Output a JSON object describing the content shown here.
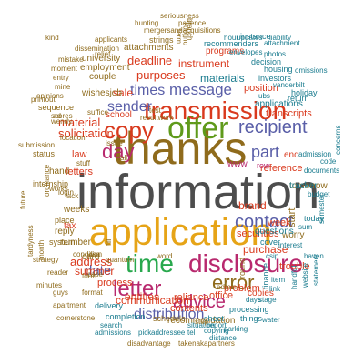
{
  "cloud": {
    "words": [
      {
        "text": "information",
        "color": "#4d4d4d",
        "tier": "largest"
      },
      {
        "text": "thanks",
        "color": "#8f6b1c",
        "tier": "largest"
      },
      {
        "text": "application",
        "color": "#e6a417",
        "tier": "largest"
      },
      {
        "text": "offer",
        "color": "#5f9a1b",
        "tier": "huge"
      },
      {
        "text": "transmission",
        "color": "#d93a1e",
        "tier": "huge"
      },
      {
        "text": "time",
        "color": "#28a84d",
        "tier": "huge"
      },
      {
        "text": "disclosure",
        "color": "#b8296e",
        "tier": "huge"
      },
      {
        "text": "copy",
        "color": "#d93a1e",
        "tier": "huge"
      },
      {
        "text": "letter",
        "color": "#b8296e",
        "tier": "huge"
      },
      {
        "text": "error",
        "color": "#8f6b1c",
        "tier": "huge"
      },
      {
        "text": "advice",
        "color": "#b8296e",
        "tier": "huge"
      },
      {
        "text": "day",
        "color": "#b8296e",
        "tier": "huge"
      },
      {
        "text": "message",
        "color": "#5a5fa8",
        "tier": "large"
      },
      {
        "text": "times",
        "color": "#5a5fa8",
        "tier": "large"
      },
      {
        "text": "recipient",
        "color": "#5a5fa8",
        "tier": "large"
      },
      {
        "text": "contact",
        "color": "#5a5fa8",
        "tier": "large"
      },
      {
        "text": "sender",
        "color": "#5a5fa8",
        "tier": "large"
      },
      {
        "text": "part",
        "color": "#5a5fa8",
        "tier": "large"
      },
      {
        "text": "distribution",
        "color": "#5a5fa8",
        "tier": "large"
      },
      {
        "text": "date",
        "color": "#5a5fa8",
        "tier": "large"
      },
      {
        "text": "materials",
        "color": "#1b7c8f",
        "tier": "medium"
      },
      {
        "text": "sale",
        "color": "#d93a1e",
        "tier": "medium"
      },
      {
        "text": "purposes",
        "color": "#d93a1e",
        "tier": "medium"
      },
      {
        "text": "deadline",
        "color": "#d93a1e",
        "tier": "medium"
      },
      {
        "text": "instrument",
        "color": "#d93a1e",
        "tier": "medium"
      },
      {
        "text": "material",
        "color": "#d93a1e",
        "tier": "medium"
      },
      {
        "text": "solicitation",
        "color": "#d93a1e",
        "tier": "medium"
      },
      {
        "text": "address",
        "color": "#d93a1e",
        "tier": "medium"
      },
      {
        "text": "summer",
        "color": "#d93a1e",
        "tier": "medium"
      },
      {
        "text": "entities",
        "color": "#d93a1e",
        "tier": "medium"
      },
      {
        "text": "communication",
        "color": "#d93a1e",
        "tier": "medium"
      },
      {
        "text": "reliance",
        "color": "#d93a1e",
        "tier": "medium"
      },
      {
        "text": "brand",
        "color": "#d93a1e",
        "tier": "medium"
      },
      {
        "text": "purchase",
        "color": "#d93a1e",
        "tier": "medium"
      },
      {
        "text": "trouble",
        "color": "#d93a1e",
        "tier": "medium"
      },
      {
        "text": "securities",
        "color": "#d93a1e",
        "tier": "medium"
      },
      {
        "text": "problem",
        "color": "#d93a1e",
        "tier": "medium"
      },
      {
        "text": "week",
        "color": "#d93a1e",
        "tier": "medium"
      },
      {
        "text": "reference",
        "color": "#d93a1e",
        "tier": "medium"
      },
      {
        "text": "transcripts",
        "color": "#d93a1e",
        "tier": "medium"
      },
      {
        "text": "position",
        "color": "#d93a1e",
        "tier": "medium"
      },
      {
        "text": "letters",
        "color": "#d93a1e",
        "tier": "medium"
      },
      {
        "text": "contents",
        "color": "#d93a1e",
        "tier": "medium"
      },
      {
        "text": "process",
        "color": "#d93a1e",
        "tier": "medium"
      },
      {
        "text": "office",
        "color": "#d93a1e",
        "tier": "medium"
      },
      {
        "text": "law",
        "color": "#d93a1e",
        "tier": "medium"
      },
      {
        "text": "tax",
        "color": "#d93a1e",
        "tier": "small"
      },
      {
        "text": "end",
        "color": "#d93a1e",
        "tier": "small"
      },
      {
        "text": "copies",
        "color": "#d93a1e",
        "tier": "small"
      },
      {
        "text": "school",
        "color": "#d93a1e",
        "tier": "small"
      },
      {
        "text": "programs",
        "color": "#d93a1e",
        "tier": "small"
      },
      {
        "text": "university",
        "color": "#8f6b1c",
        "tier": "small"
      },
      {
        "text": "employment",
        "color": "#8f6b1c",
        "tier": "small"
      },
      {
        "text": "attachments",
        "color": "#8f6b1c",
        "tier": "small"
      },
      {
        "text": "strings",
        "color": "#8f6b1c",
        "tier": "small"
      },
      {
        "text": "couple",
        "color": "#8f6b1c",
        "tier": "small"
      },
      {
        "text": "wishesjob",
        "color": "#8f6b1c",
        "tier": "small"
      },
      {
        "text": "recommendation",
        "color": "#8f6b1c",
        "tier": "small"
      },
      {
        "text": "schedule",
        "color": "#8f6b1c",
        "tier": "small"
      },
      {
        "text": "worry",
        "color": "#8f6b1c",
        "tier": "small"
      },
      {
        "text": "tomorrow",
        "color": "#8f6b1c",
        "tier": "small"
      },
      {
        "text": "start",
        "color": "#8f6b1c",
        "tier": "small"
      },
      {
        "text": "card",
        "color": "#8f6b1c",
        "tier": "small"
      },
      {
        "text": "number",
        "color": "#8f6b1c",
        "tier": "small"
      },
      {
        "text": "weeks",
        "color": "#8f6b1c",
        "tier": "small"
      },
      {
        "text": "hand",
        "color": "#8f6b1c",
        "tier": "small"
      },
      {
        "text": "www",
        "color": "#b8296e",
        "tier": "small"
      },
      {
        "text": "row",
        "color": "#b8296e",
        "tier": "small"
      },
      {
        "text": "housing",
        "color": "#1b7c8f",
        "tier": "small"
      },
      {
        "text": "recommenders",
        "color": "#1b7c8f",
        "tier": "small"
      },
      {
        "text": "instance",
        "color": "#1b7c8f",
        "tier": "small"
      },
      {
        "text": "decision",
        "color": "#1b7c8f",
        "tier": "small"
      },
      {
        "text": "investors",
        "color": "#1b7c8f",
        "tier": "small"
      },
      {
        "text": "applications",
        "color": "#1b7c8f",
        "tier": "small"
      },
      {
        "text": "holiday",
        "color": "#1b7c8f",
        "tier": "small"
      },
      {
        "text": "return",
        "color": "#1b7c8f",
        "tier": "small"
      },
      {
        "text": "tracker",
        "color": "#1b7c8f",
        "tier": "small"
      },
      {
        "text": "cover",
        "color": "#1b7c8f",
        "tier": "small"
      },
      {
        "text": "questions",
        "color": "#1b7c8f",
        "tier": "small"
      },
      {
        "text": "today",
        "color": "#1b7c8f",
        "tier": "small"
      },
      {
        "text": "finance",
        "color": "#1b7c8f",
        "tier": "small"
      },
      {
        "text": "sheet",
        "color": "#1b7c8f",
        "tier": "small"
      },
      {
        "text": "processing",
        "color": "#1b7c8f",
        "tier": "small"
      },
      {
        "text": "things",
        "color": "#1b7c8f",
        "tier": "small"
      },
      {
        "text": "delivery",
        "color": "#1b7c8f",
        "tier": "small"
      },
      {
        "text": "completion",
        "color": "#1b7c8f",
        "tier": "small"
      },
      {
        "text": "search",
        "color": "#1b7c8f",
        "tier": "tiny"
      },
      {
        "text": "admissions",
        "color": "#1b7c8f",
        "tier": "tiny"
      },
      {
        "text": "pick",
        "color": "#1b7c8f",
        "tier": "tiny"
      },
      {
        "text": "addressee",
        "color": "#1b7c8f",
        "tier": "tiny"
      },
      {
        "text": "tel",
        "color": "#1b7c8f",
        "tier": "tiny"
      },
      {
        "text": "report",
        "color": "#1b7c8f",
        "tier": "tiny"
      },
      {
        "text": "situation",
        "color": "#1b7c8f",
        "tier": "tiny"
      },
      {
        "text": "parking",
        "color": "#1b7c8f",
        "tier": "tiny"
      },
      {
        "text": "copying",
        "color": "#1b7c8f",
        "tier": "tiny"
      },
      {
        "text": "distance",
        "color": "#1b7c8f",
        "tier": "tiny"
      },
      {
        "text": "water",
        "color": "#1b7c8f",
        "tier": "tiny"
      },
      {
        "text": "stage",
        "color": "#1b7c8f",
        "tier": "tiny"
      },
      {
        "text": "days",
        "color": "#1b7c8f",
        "tier": "tiny"
      },
      {
        "text": "link",
        "color": "#1b7c8f",
        "tier": "tiny"
      },
      {
        "text": "item",
        "color": "#1b7c8f",
        "tier": "tiny"
      },
      {
        "text": "handful",
        "color": "#1b7c8f",
        "tier": "tiny"
      },
      {
        "text": "website",
        "color": "#1b7c8f",
        "tier": "tiny"
      },
      {
        "text": "statement",
        "color": "#1b7c8f",
        "tier": "tiny"
      },
      {
        "text": "haven",
        "color": "#1b7c8f",
        "tier": "tiny"
      },
      {
        "text": "budget",
        "color": "#1b7c8f",
        "tier": "tiny"
      },
      {
        "text": "documents",
        "color": "#1b7c8f",
        "tier": "tiny"
      },
      {
        "text": "admission",
        "color": "#1b7c8f",
        "tier": "tiny"
      },
      {
        "text": "code",
        "color": "#1b7c8f",
        "tier": "tiny"
      },
      {
        "text": "vanderbilt",
        "color": "#1b7c8f",
        "tier": "tiny"
      },
      {
        "text": "ubs",
        "color": "#1b7c8f",
        "tier": "tiny"
      },
      {
        "text": "sum",
        "color": "#1b7c8f",
        "tier": "tiny"
      },
      {
        "text": "interest",
        "color": "#1b7c8f",
        "tier": "tiny"
      },
      {
        "text": "csip",
        "color": "#1b7c8f",
        "tier": "tiny"
      },
      {
        "text": "semester",
        "color": "#1b7c8f",
        "tier": "tiny"
      },
      {
        "text": "concerns",
        "color": "#1b7c8f",
        "tier": "tiny"
      },
      {
        "text": "omissions",
        "color": "#1b7c8f",
        "tier": "tiny"
      },
      {
        "text": "attachment",
        "color": "#1b7c8f",
        "tier": "tiny"
      },
      {
        "text": "photos",
        "color": "#1b7c8f",
        "tier": "tiny"
      },
      {
        "text": "envelopes",
        "color": "#1b7c8f",
        "tier": "tiny"
      },
      {
        "text": "updates",
        "color": "#1b7c8f",
        "tier": "tiny"
      },
      {
        "text": "liability",
        "color": "#1b7c8f",
        "tier": "tiny"
      },
      {
        "text": "hour",
        "color": "#1b7c8f",
        "tier": "tiny"
      },
      {
        "text": "seriousness",
        "color": "#8f6b1c",
        "tier": "tiny"
      },
      {
        "text": "hunting",
        "color": "#8f6b1c",
        "tier": "tiny"
      },
      {
        "text": "patience",
        "color": "#8f6b1c",
        "tier": "tiny"
      },
      {
        "text": "mergersandacquisitions",
        "color": "#8f6b1c",
        "tier": "tiny"
      },
      {
        "text": "applicants",
        "color": "#8f6b1c",
        "tier": "tiny"
      },
      {
        "text": "dissemination",
        "color": "#8f6b1c",
        "tier": "tiny"
      },
      {
        "text": "relief",
        "color": "#8f6b1c",
        "tier": "tiny"
      },
      {
        "text": "mistake",
        "color": "#8f6b1c",
        "tier": "tiny"
      },
      {
        "text": "moment",
        "color": "#8f6b1c",
        "tier": "tiny"
      },
      {
        "text": "entry",
        "color": "#8f6b1c",
        "tier": "tiny"
      },
      {
        "text": "opinions",
        "color": "#8f6b1c",
        "tier": "tiny"
      },
      {
        "text": "printout",
        "color": "#8f6b1c",
        "tier": "tiny"
      },
      {
        "text": "sequence",
        "color": "#8f6b1c",
        "tier": "tiny"
      },
      {
        "text": "submission",
        "color": "#8f6b1c",
        "tier": "tiny"
      },
      {
        "text": "status",
        "color": "#8f6b1c",
        "tier": "tiny"
      },
      {
        "text": "internship",
        "color": "#8f6b1c",
        "tier": "tiny"
      },
      {
        "text": "place",
        "color": "#8f6b1c",
        "tier": "tiny"
      },
      {
        "text": "reply",
        "color": "#8f6b1c",
        "tier": "tiny"
      },
      {
        "text": "system",
        "color": "#8f6b1c",
        "tier": "tiny"
      },
      {
        "text": "strategy",
        "color": "#8f6b1c",
        "tier": "tiny"
      },
      {
        "text": "reader",
        "color": "#8f6b1c",
        "tier": "tiny"
      },
      {
        "text": "minutes",
        "color": "#8f6b1c",
        "tier": "tiny"
      },
      {
        "text": "guys",
        "color": "#8f6b1c",
        "tier": "tiny"
      },
      {
        "text": "apartment",
        "color": "#8f6b1c",
        "tier": "tiny"
      },
      {
        "text": "cornerstone",
        "color": "#8f6b1c",
        "tier": "tiny"
      },
      {
        "text": "disadvantage",
        "color": "#8f6b1c",
        "tier": "tiny"
      },
      {
        "text": "takenakapartners",
        "color": "#8f6b1c",
        "tier": "tiny"
      },
      {
        "text": "format",
        "color": "#8f6b1c",
        "tier": "tiny"
      },
      {
        "text": "form",
        "color": "#8f6b1c",
        "tier": "tiny"
      },
      {
        "text": "case",
        "color": "#8f6b1c",
        "tier": "tiny"
      },
      {
        "text": "scores",
        "color": "#8f6b1c",
        "tier": "tiny"
      },
      {
        "text": "wendy",
        "color": "#8f6b1c",
        "tier": "tiny"
      },
      {
        "text": "mine",
        "color": "#8f6b1c",
        "tier": "tiny"
      },
      {
        "text": "location",
        "color": "#8f6b1c",
        "tier": "tiny"
      },
      {
        "text": "suffice",
        "color": "#8f6b1c",
        "tier": "tiny"
      },
      {
        "text": "resultwork",
        "color": "#8f6b1c",
        "tier": "tiny"
      },
      {
        "text": "stuff",
        "color": "#8f6b1c",
        "tier": "tiny"
      },
      {
        "text": "condition",
        "color": "#8f6b1c",
        "tier": "tiny"
      },
      {
        "text": "visa",
        "color": "#8f6b1c",
        "tier": "tiny"
      },
      {
        "text": "fill",
        "color": "#8f6b1c",
        "tier": "tiny"
      },
      {
        "text": "quantum",
        "color": "#8f6b1c",
        "tier": "tiny"
      },
      {
        "text": "admin",
        "color": "#8f6b1c",
        "tier": "tiny"
      },
      {
        "text": "word",
        "color": "#8f6b1c",
        "tier": "tiny"
      },
      {
        "text": "round",
        "color": "#8f6b1c",
        "tier": "tiny"
      },
      {
        "text": "step",
        "color": "#8f6b1c",
        "tier": "tiny"
      },
      {
        "text": "term",
        "color": "#8f6b1c",
        "tier": "tiny"
      },
      {
        "text": "branch",
        "color": "#8f6b1c",
        "tier": "tiny"
      },
      {
        "text": "outlook",
        "color": "#8f6b1c",
        "tier": "tiny"
      },
      {
        "text": "ordinance",
        "color": "#8f6b1c",
        "tier": "tiny"
      },
      {
        "text": "future",
        "color": "#8f6b1c",
        "tier": "tiny"
      },
      {
        "text": "tardyness",
        "color": "#8f6b1c",
        "tier": "tiny"
      },
      {
        "text": "month",
        "color": "#8f6b1c",
        "tier": "tiny"
      },
      {
        "text": "works",
        "color": "#8f6b1c",
        "tier": "tiny"
      },
      {
        "text": "login",
        "color": "#8f6b1c",
        "tier": "tiny"
      },
      {
        "text": "lack",
        "color": "#8f6b1c",
        "tier": "tiny"
      },
      {
        "text": "ad",
        "color": "#8f6b1c",
        "tier": "tiny"
      },
      {
        "text": "test",
        "color": "#8f6b1c",
        "tier": "tiny"
      },
      {
        "text": "call",
        "color": "#8f6b1c",
        "tier": "tiny"
      },
      {
        "text": "kind",
        "color": "#8f6b1c",
        "tier": "tiny"
      },
      {
        "text": "issue",
        "color": "#8f6b1c",
        "tier": "tiny"
      },
      {
        "text": "mexico",
        "color": "#8f6b1c",
        "tier": "tiny"
      }
    ]
  }
}
